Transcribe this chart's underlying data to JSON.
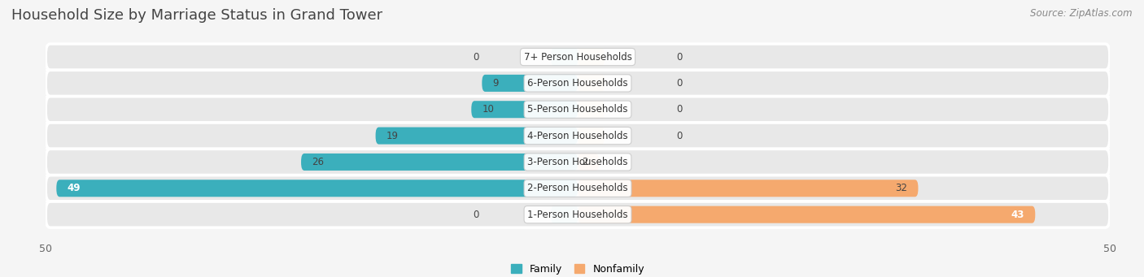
{
  "title": "Household Size by Marriage Status in Grand Tower",
  "source": "Source: ZipAtlas.com",
  "categories": [
    "7+ Person Households",
    "6-Person Households",
    "5-Person Households",
    "4-Person Households",
    "3-Person Households",
    "2-Person Households",
    "1-Person Households"
  ],
  "family": [
    0,
    9,
    10,
    19,
    26,
    49,
    0
  ],
  "nonfamily": [
    0,
    0,
    0,
    0,
    2,
    32,
    43
  ],
  "family_color": "#3BAFBC",
  "nonfamily_color": "#F5A96E",
  "family_color_light": "#7FCDD5",
  "nonfamily_color_light": "#F8C99E",
  "xlim": 50,
  "background_color": "#f5f5f5",
  "bar_bg_color": "#e8e8e8",
  "row_bg_color": "#ebebeb",
  "label_bg_color": "#ffffff",
  "title_fontsize": 13,
  "source_fontsize": 8.5,
  "tick_fontsize": 9,
  "bar_label_fontsize": 8.5,
  "cat_label_fontsize": 8.5,
  "legend_fontsize": 9
}
